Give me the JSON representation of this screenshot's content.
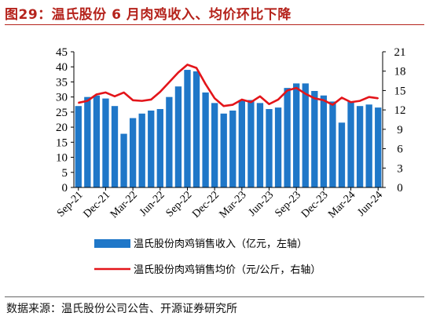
{
  "header": {
    "title": "图29：温氏股份 6 月肉鸡收入、均价环比下降"
  },
  "footer": {
    "source": "数据来源：温氏股份公司公告、开源证券研究所"
  },
  "colors": {
    "bar": "#1f77c8",
    "line": "#e3151a",
    "title": "#b5231c"
  },
  "chart_data": {
    "type": "bar",
    "categories": [
      "Sep-21",
      "Oct-21",
      "Nov-21",
      "Dec-21",
      "Jan-22",
      "Feb-22",
      "Mar-22",
      "Apr-22",
      "May-22",
      "Jun-22",
      "Jul-22",
      "Aug-22",
      "Sep-22",
      "Oct-22",
      "Nov-22",
      "Dec-22",
      "Jan-23",
      "Feb-23",
      "Mar-23",
      "Apr-23",
      "May-23",
      "Jun-23",
      "Jul-23",
      "Aug-23",
      "Sep-23",
      "Oct-23",
      "Nov-23",
      "Dec-23",
      "Jan-24",
      "Feb-24",
      "Mar-24",
      "Apr-24",
      "May-24",
      "Jun-24"
    ],
    "x_tick_labels": [
      "Sep-21",
      "Dec-21",
      "Mar-22",
      "Jun-22",
      "Sep-22",
      "Dec-22",
      "Mar-23",
      "Jun-23",
      "Sep-23",
      "Dec-23",
      "Mar-24",
      "Jun-24"
    ],
    "series": [
      {
        "name": "温氏股份肉鸡销售收入（亿元，左轴）",
        "type": "bar",
        "axis": "left",
        "values": [
          27,
          30,
          30.5,
          29.5,
          27,
          17.8,
          23,
          24.5,
          25.5,
          26,
          30,
          33.5,
          39,
          38.5,
          31.5,
          28,
          24.5,
          25.5,
          29,
          29,
          28,
          26,
          26.5,
          33,
          34.5,
          34.5,
          32,
          30.5,
          28.5,
          21.5,
          28.5,
          27,
          27.5,
          26.5
        ]
      },
      {
        "name": "温氏股份肉鸡销售均价（元/公斤，右轴）",
        "type": "line",
        "axis": "right",
        "values": [
          13.1,
          13.4,
          14.4,
          14.7,
          14.1,
          14.7,
          13.5,
          13.4,
          13.6,
          14.8,
          16.3,
          17.8,
          19.0,
          18.5,
          16.0,
          13.8,
          12.6,
          12.8,
          13.6,
          13.2,
          14.1,
          12.9,
          13.6,
          15.0,
          15.4,
          14.5,
          13.8,
          13.5,
          12.8,
          13.9,
          13.2,
          13.4,
          14.0,
          13.8
        ]
      }
    ],
    "y_left": {
      "min": 0,
      "max": 45,
      "ticks": [
        "0",
        "5",
        "10",
        "15",
        "20",
        "25",
        "30",
        "35",
        "40",
        "45"
      ]
    },
    "y_right": {
      "min": 0,
      "max": 21,
      "ticks": [
        "0",
        "3",
        "6",
        "9",
        "12",
        "15",
        "18",
        "21"
      ]
    },
    "legend": {
      "position": "bottom",
      "items": [
        {
          "label": "温氏股份肉鸡销售收入（亿元，左轴）",
          "kind": "bar"
        },
        {
          "label": "温氏股份肉鸡销售均价（元/公斤，右轴）",
          "kind": "line"
        }
      ]
    },
    "grid": false
  }
}
